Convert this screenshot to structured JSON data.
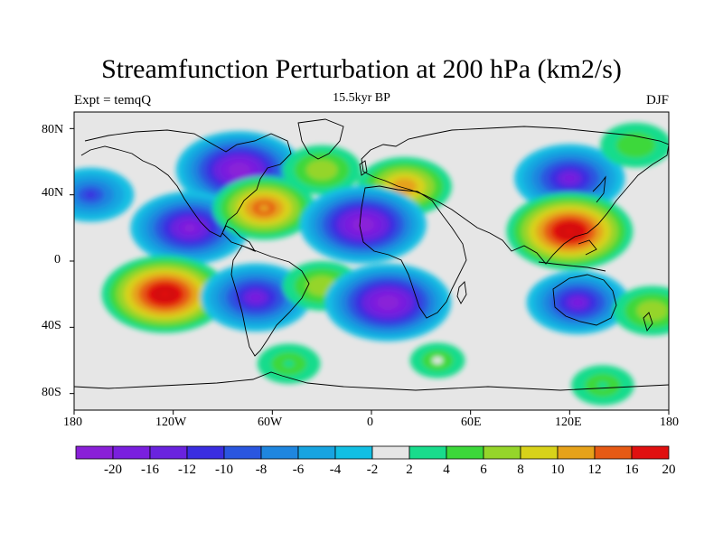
{
  "header": {
    "title": "Streamfunction Perturbation at 200 hPa (km2/s)",
    "left_label": "Expt = temqQ",
    "center_label": "15.5kyr BP",
    "right_label": "DJF"
  },
  "axes": {
    "lat_labels": [
      "80N",
      "40N",
      "0",
      "40S",
      "80S"
    ],
    "lon_labels": [
      "180",
      "120W",
      "60W",
      "0",
      "60E",
      "120E",
      "180"
    ]
  },
  "colorbar": {
    "labels": [
      "-20",
      "-16",
      "-12",
      "-10",
      "-8",
      "-6",
      "-4",
      "-2",
      "2",
      "4",
      "6",
      "8",
      "10",
      "12",
      "16",
      "20"
    ],
    "colors": [
      "#8a20d8",
      "#7a1fde",
      "#6a23de",
      "#3a2de0",
      "#2a56df",
      "#1f86df",
      "#18a4e0",
      "#12bfe3",
      "#e6e6e6",
      "#19dc8c",
      "#3cd83a",
      "#95d52a",
      "#d8d21a",
      "#e6a21a",
      "#e65a14",
      "#e01010"
    ]
  },
  "chart_data": {
    "type": "heatmap",
    "title": "Streamfunction Perturbation at 200 hPa (km2/s)",
    "subtitle": "15.5kyr BP",
    "xlabel": "",
    "ylabel": "",
    "xlim": [
      -180,
      180
    ],
    "ylim": [
      -90,
      90
    ],
    "color_levels": [
      -20,
      -16,
      -12,
      -10,
      -8,
      -6,
      -4,
      -2,
      2,
      4,
      6,
      8,
      10,
      12,
      16,
      20
    ],
    "features": [
      {
        "lon": -80,
        "lat": 55,
        "value": -20
      },
      {
        "lon": -30,
        "lat": 55,
        "value": 8
      },
      {
        "lon": 20,
        "lat": 45,
        "value": 12
      },
      {
        "lon": 120,
        "lat": 50,
        "value": -16
      },
      {
        "lon": 160,
        "lat": 70,
        "value": 6
      },
      {
        "lon": -110,
        "lat": 20,
        "value": -18
      },
      {
        "lon": -65,
        "lat": 32,
        "value": 14
      },
      {
        "lon": -5,
        "lat": 22,
        "value": -20
      },
      {
        "lon": 120,
        "lat": 18,
        "value": 20
      },
      {
        "lon": -125,
        "lat": -20,
        "value": 20
      },
      {
        "lon": -70,
        "lat": -22,
        "value": -16
      },
      {
        "lon": -30,
        "lat": -15,
        "value": 8
      },
      {
        "lon": 10,
        "lat": -25,
        "value": -20
      },
      {
        "lon": 125,
        "lat": -25,
        "value": -14
      },
      {
        "lon": 170,
        "lat": -30,
        "value": 8
      },
      {
        "lon": -170,
        "lat": 40,
        "value": -10
      },
      {
        "lon": -50,
        "lat": -62,
        "value": 4
      },
      {
        "lon": 40,
        "lat": -60,
        "value": 2
      },
      {
        "lon": 140,
        "lat": -75,
        "value": 4
      }
    ]
  }
}
